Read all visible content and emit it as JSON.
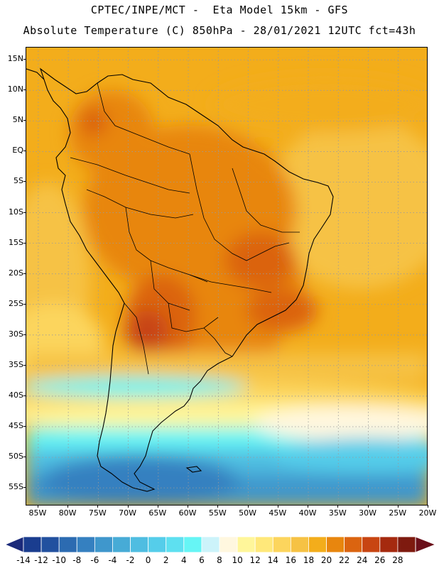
{
  "header": {
    "line1": "CPTEC/INPE/MCT -  Eta Model 15km - GFS",
    "line2": "Absolute Temperature (C) 850hPa - 28/01/2021 12UTC fct=43h"
  },
  "map": {
    "lat_range": [
      -58,
      17
    ],
    "lon_range": [
      -87,
      -20
    ],
    "lat_labels": [
      "15N",
      "10N",
      "5N",
      "EQ",
      "5S",
      "10S",
      "15S",
      "20S",
      "25S",
      "30S",
      "35S",
      "40S",
      "45S",
      "50S",
      "55S"
    ],
    "lat_values": [
      15,
      10,
      5,
      0,
      -5,
      -10,
      -15,
      -20,
      -25,
      -30,
      -35,
      -40,
      -45,
      -50,
      -55
    ],
    "lon_labels": [
      "85W",
      "80W",
      "75W",
      "70W",
      "65W",
      "60W",
      "55W",
      "50W",
      "45W",
      "40W",
      "35W",
      "30W",
      "25W",
      "20W"
    ],
    "lon_values": [
      -85,
      -80,
      -75,
      -70,
      -65,
      -60,
      -55,
      -50,
      -45,
      -40,
      -35,
      -30,
      -25,
      -20
    ]
  },
  "colorbar": {
    "labels": [
      "-14",
      "-12",
      "-10",
      "-8",
      "-6",
      "-4",
      "-2",
      "0",
      "2",
      "4",
      "6",
      "8",
      "10",
      "12",
      "14",
      "16",
      "18",
      "20",
      "22",
      "24",
      "26",
      "28"
    ],
    "colors": [
      "#1a3d8f",
      "#22519f",
      "#2c6bb1",
      "#3580c0",
      "#3f97cc",
      "#47abd6",
      "#4fbde1",
      "#55cdea",
      "#5ee0f0",
      "#66f5f5",
      "#ccf3fa",
      "#fff7df",
      "#fff69a",
      "#ffe87a",
      "#fcd55d",
      "#f6c244",
      "#f3ad1b",
      "#e8860e",
      "#db6410",
      "#c84512",
      "#a52a0f",
      "#7e1a0f"
    ],
    "low_color": "#1b2a7a",
    "high_color": "#6b0f1a"
  }
}
